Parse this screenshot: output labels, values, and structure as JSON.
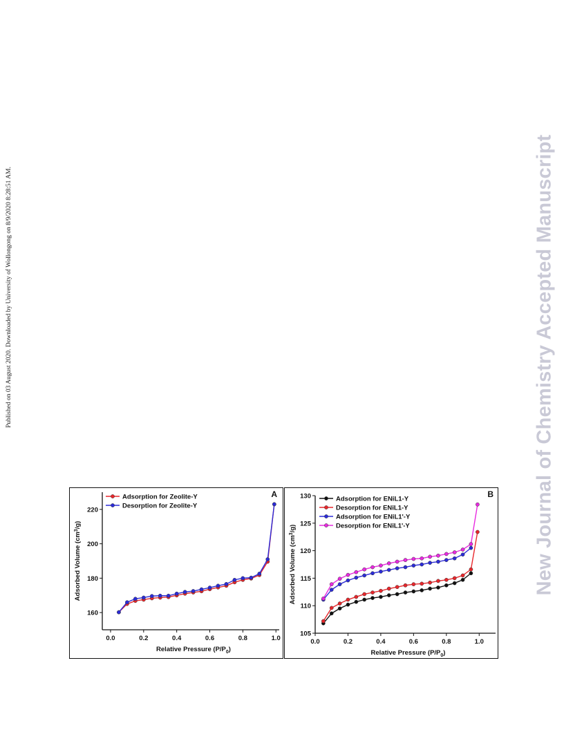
{
  "side_note": "Published on 03 August 2020. Downloaded by University of Wollongong on 8/9/2020 8:28:51 AM.",
  "watermark": "New Journal of Chemistry Accepted Manuscript",
  "chart_data": [
    {
      "type": "line",
      "panel": "A",
      "xlabel": "Relative Pressure (P/P",
      "xlabel_sub": "0",
      "xlabel_end": ")",
      "ylabel": "Adsorbed Volume (cm",
      "ylabel_sup": "3",
      "ylabel_end": "/g)",
      "xlim": [
        -0.05,
        1.02
      ],
      "ylim": [
        150,
        230
      ],
      "xticks": [
        0.0,
        0.2,
        0.4,
        0.6,
        0.8,
        1.0
      ],
      "xtick_labels": [
        "0.0",
        "0.2",
        "0.4",
        "0.6",
        "0.8",
        "1.0"
      ],
      "yticks": [
        160,
        180,
        200,
        220
      ],
      "ytick_labels": [
        "160",
        "180",
        "200",
        "220"
      ],
      "legend_position": "top-left",
      "grid": false,
      "x": [
        0.05,
        0.1,
        0.15,
        0.2,
        0.25,
        0.3,
        0.35,
        0.4,
        0.45,
        0.5,
        0.55,
        0.6,
        0.65,
        0.7,
        0.75,
        0.8,
        0.85,
        0.9,
        0.95,
        0.99
      ],
      "series": [
        {
          "name": "Adsorption for Zeolite-Y",
          "color": "#e8262b",
          "values": [
            160.2,
            165.0,
            166.8,
            167.5,
            168.3,
            168.7,
            169.0,
            170.0,
            171.0,
            171.7,
            172.4,
            173.6,
            174.6,
            175.6,
            177.6,
            179.0,
            179.8,
            181.8,
            189.6,
            223.0
          ]
        },
        {
          "name": "Desorption for Zeolite-Y",
          "color": "#2b2bd8",
          "values": [
            160.2,
            166.0,
            168.0,
            168.7,
            169.6,
            169.8,
            169.8,
            171.0,
            172.0,
            172.5,
            173.5,
            174.5,
            175.6,
            176.6,
            179.0,
            180.0,
            180.3,
            182.6,
            191.0,
            223.0
          ]
        }
      ]
    },
    {
      "type": "line",
      "panel": "B",
      "xlabel": "Relative Pressure (P/P",
      "xlabel_sub": "0",
      "xlabel_end": ")",
      "ylabel": "Adsorbed Volume (cm",
      "ylabel_sup": "3",
      "ylabel_end": "/g)",
      "xlim": [
        0.0,
        1.1
      ],
      "ylim": [
        105,
        130
      ],
      "xticks": [
        0.0,
        0.2,
        0.4,
        0.6,
        0.8,
        1.0
      ],
      "xtick_labels": [
        "0.0",
        "0.2",
        "0.4",
        "0.6",
        "0.8",
        "1.0"
      ],
      "yticks": [
        105,
        110,
        115,
        120,
        125,
        130
      ],
      "ytick_labels": [
        "105",
        "110",
        "115",
        "120",
        "125",
        "130"
      ],
      "legend_position": "top-left",
      "grid": false,
      "x": [
        0.05,
        0.1,
        0.15,
        0.2,
        0.25,
        0.3,
        0.35,
        0.4,
        0.45,
        0.5,
        0.55,
        0.6,
        0.65,
        0.7,
        0.75,
        0.8,
        0.85,
        0.9,
        0.95
      ],
      "series": [
        {
          "name": "Adsorption for ENiL1-Y",
          "color": "#111111",
          "x": [
            0.05,
            0.1,
            0.15,
            0.2,
            0.25,
            0.3,
            0.35,
            0.4,
            0.45,
            0.5,
            0.55,
            0.6,
            0.65,
            0.7,
            0.75,
            0.8,
            0.85,
            0.9,
            0.95
          ],
          "values": [
            106.8,
            108.6,
            109.5,
            110.2,
            110.7,
            111.1,
            111.4,
            111.6,
            111.9,
            112.1,
            112.4,
            112.6,
            112.8,
            113.1,
            113.3,
            113.7,
            114.1,
            114.7,
            115.9
          ]
        },
        {
          "name": "Desorption for ENiL1-Y",
          "color": "#e8262b",
          "x": [
            0.05,
            0.1,
            0.15,
            0.2,
            0.25,
            0.3,
            0.35,
            0.4,
            0.45,
            0.5,
            0.55,
            0.6,
            0.65,
            0.7,
            0.75,
            0.8,
            0.85,
            0.9,
            0.95,
            0.99
          ],
          "values": [
            107.2,
            109.6,
            110.4,
            111.1,
            111.6,
            112.1,
            112.4,
            112.7,
            113.1,
            113.4,
            113.7,
            113.9,
            114.0,
            114.2,
            114.5,
            114.7,
            115.0,
            115.5,
            116.6,
            123.4
          ]
        },
        {
          "name": "Adsorption for ENiL1'-Y",
          "color": "#2b2bd8",
          "x": [
            0.05,
            0.1,
            0.15,
            0.2,
            0.25,
            0.3,
            0.35,
            0.4,
            0.45,
            0.5,
            0.55,
            0.6,
            0.65,
            0.7,
            0.75,
            0.8,
            0.85,
            0.9,
            0.95
          ],
          "values": [
            111.1,
            112.9,
            113.9,
            114.6,
            115.1,
            115.5,
            115.9,
            116.2,
            116.5,
            116.8,
            117.0,
            117.3,
            117.5,
            117.8,
            118.0,
            118.3,
            118.6,
            119.3,
            120.5
          ]
        },
        {
          "name": "Desorption for ENiL1'-Y",
          "color": "#e82ae0",
          "x": [
            0.05,
            0.1,
            0.15,
            0.2,
            0.25,
            0.3,
            0.35,
            0.4,
            0.45,
            0.5,
            0.55,
            0.6,
            0.65,
            0.7,
            0.75,
            0.8,
            0.85,
            0.9,
            0.95,
            0.99
          ],
          "values": [
            111.3,
            113.9,
            114.9,
            115.6,
            116.1,
            116.6,
            117.0,
            117.3,
            117.7,
            118.0,
            118.3,
            118.5,
            118.6,
            118.9,
            119.1,
            119.4,
            119.7,
            120.2,
            121.2,
            128.4
          ]
        }
      ]
    }
  ]
}
